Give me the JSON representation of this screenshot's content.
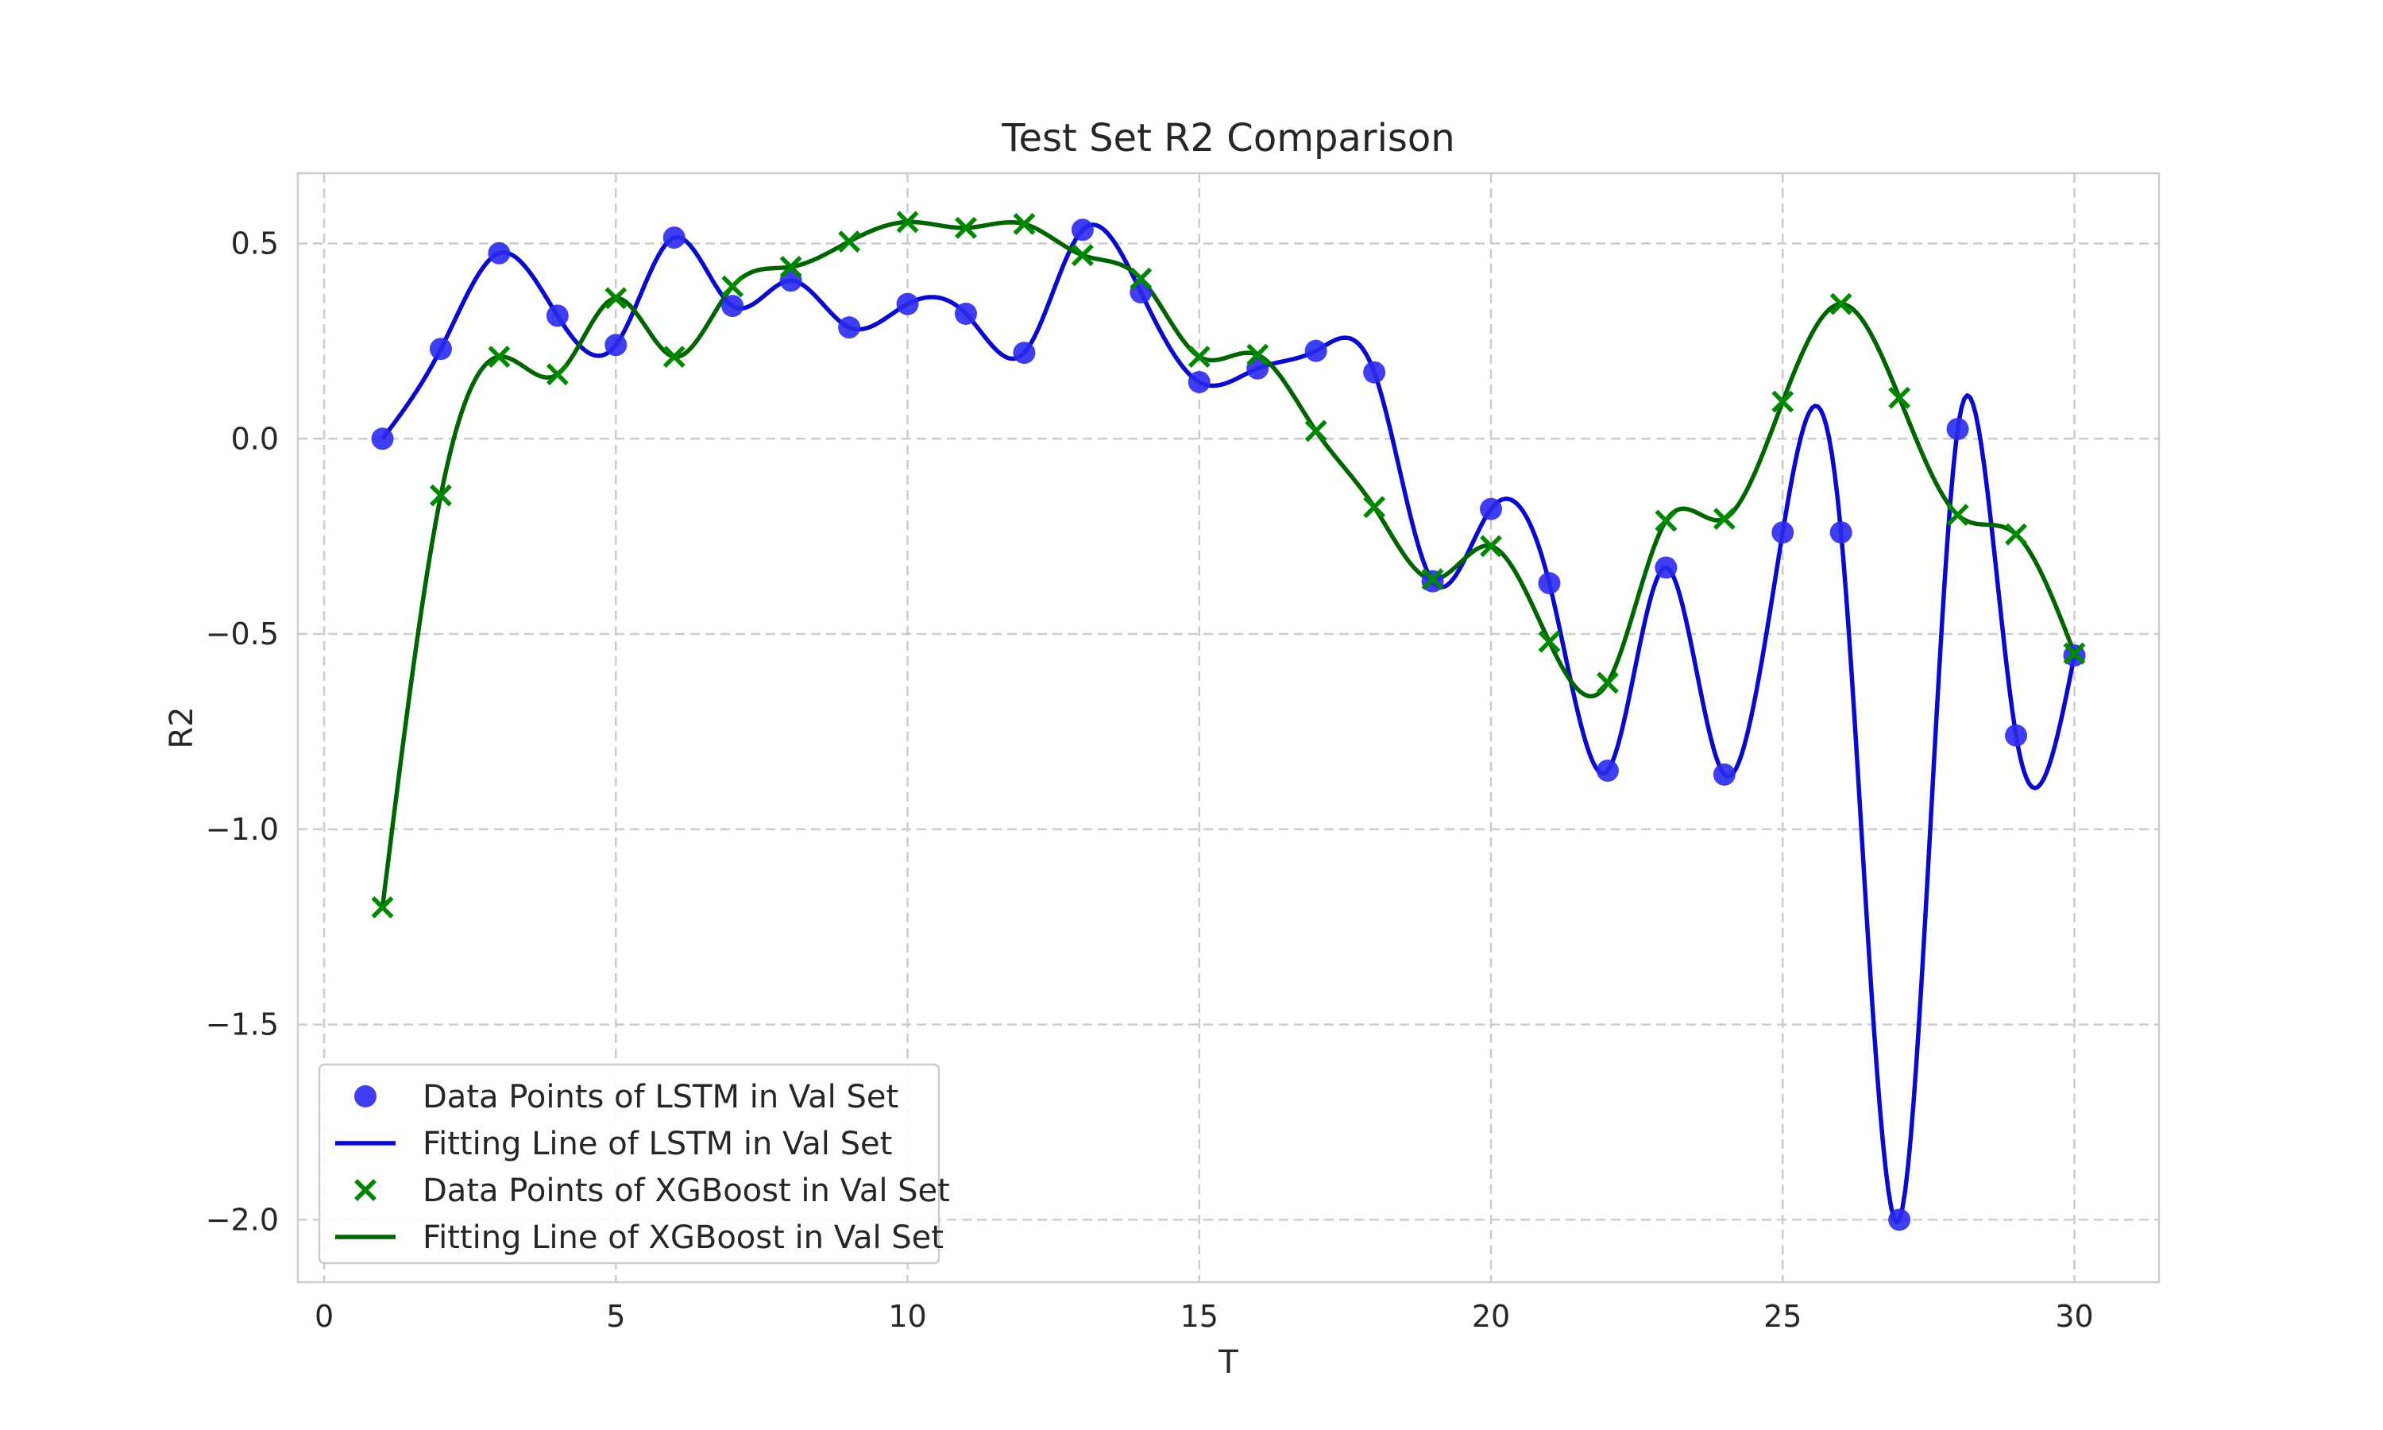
{
  "chart_data": {
    "type": "line",
    "title": "Test Set R2 Comparison",
    "xlabel": "T",
    "ylabel": "R2",
    "xlim": [
      -0.45,
      31.45
    ],
    "ylim": [
      -2.16,
      0.68
    ],
    "xticks": [
      0,
      5,
      10,
      15,
      20,
      25,
      30
    ],
    "yticks": [
      -2.0,
      -1.5,
      -1.0,
      -0.5,
      0.0,
      0.5
    ],
    "xtick_labels": [
      "0",
      "5",
      "10",
      "15",
      "20",
      "25",
      "30"
    ],
    "ytick_labels": [
      "−2.0",
      "−1.5",
      "−1.0",
      "−0.5",
      "0.0",
      "0.5"
    ],
    "grid": true,
    "legend_position": "lower-left",
    "x": [
      1,
      2,
      3,
      4,
      5,
      6,
      7,
      8,
      9,
      10,
      11,
      12,
      13,
      14,
      15,
      16,
      17,
      18,
      19,
      20,
      21,
      22,
      23,
      24,
      25,
      26,
      27,
      28,
      29,
      30
    ],
    "series": [
      {
        "name": "Data Points of LSTM in Val Set",
        "kind": "scatter",
        "marker": "circle",
        "color": "#2a2af0",
        "values": [
          0.0,
          0.23,
          0.475,
          0.315,
          0.24,
          0.515,
          0.34,
          0.405,
          0.285,
          0.345,
          0.32,
          0.22,
          0.535,
          0.375,
          0.145,
          0.18,
          0.225,
          0.17,
          -0.365,
          -0.18,
          -0.37,
          -0.85,
          -0.33,
          -0.86,
          -0.24,
          -0.24,
          -2.0,
          0.025,
          -0.76,
          -0.555
        ]
      },
      {
        "name": "Fitting Line of LSTM in Val Set",
        "kind": "line",
        "color": "#0a0acc",
        "values": [
          0.0,
          0.23,
          0.475,
          0.315,
          0.24,
          0.515,
          0.34,
          0.405,
          0.285,
          0.345,
          0.32,
          0.22,
          0.535,
          0.375,
          0.145,
          0.18,
          0.225,
          0.17,
          -0.365,
          -0.18,
          -0.37,
          -0.85,
          -0.33,
          -0.86,
          -0.24,
          -0.24,
          -2.0,
          0.025,
          -0.76,
          -0.555
        ]
      },
      {
        "name": "Data Points of XGBoost in Val Set",
        "kind": "scatter",
        "marker": "x",
        "color": "#008800",
        "values": [
          -1.2,
          -0.145,
          0.21,
          0.165,
          0.36,
          0.21,
          0.39,
          0.44,
          0.505,
          0.555,
          0.54,
          0.55,
          0.47,
          0.41,
          0.21,
          0.215,
          0.02,
          -0.175,
          -0.36,
          -0.275,
          -0.52,
          -0.625,
          -0.21,
          -0.205,
          0.095,
          0.345,
          0.105,
          -0.195,
          -0.245,
          -0.55
        ]
      },
      {
        "name": "Fitting Line of XGBoost in Val Set",
        "kind": "line",
        "color": "#006400",
        "values": [
          -1.2,
          -0.145,
          0.21,
          0.165,
          0.36,
          0.21,
          0.39,
          0.44,
          0.505,
          0.555,
          0.54,
          0.55,
          0.47,
          0.41,
          0.21,
          0.215,
          0.02,
          -0.175,
          -0.36,
          -0.275,
          -0.52,
          -0.625,
          -0.21,
          -0.205,
          0.095,
          0.345,
          0.105,
          -0.195,
          -0.245,
          -0.55
        ]
      }
    ]
  }
}
